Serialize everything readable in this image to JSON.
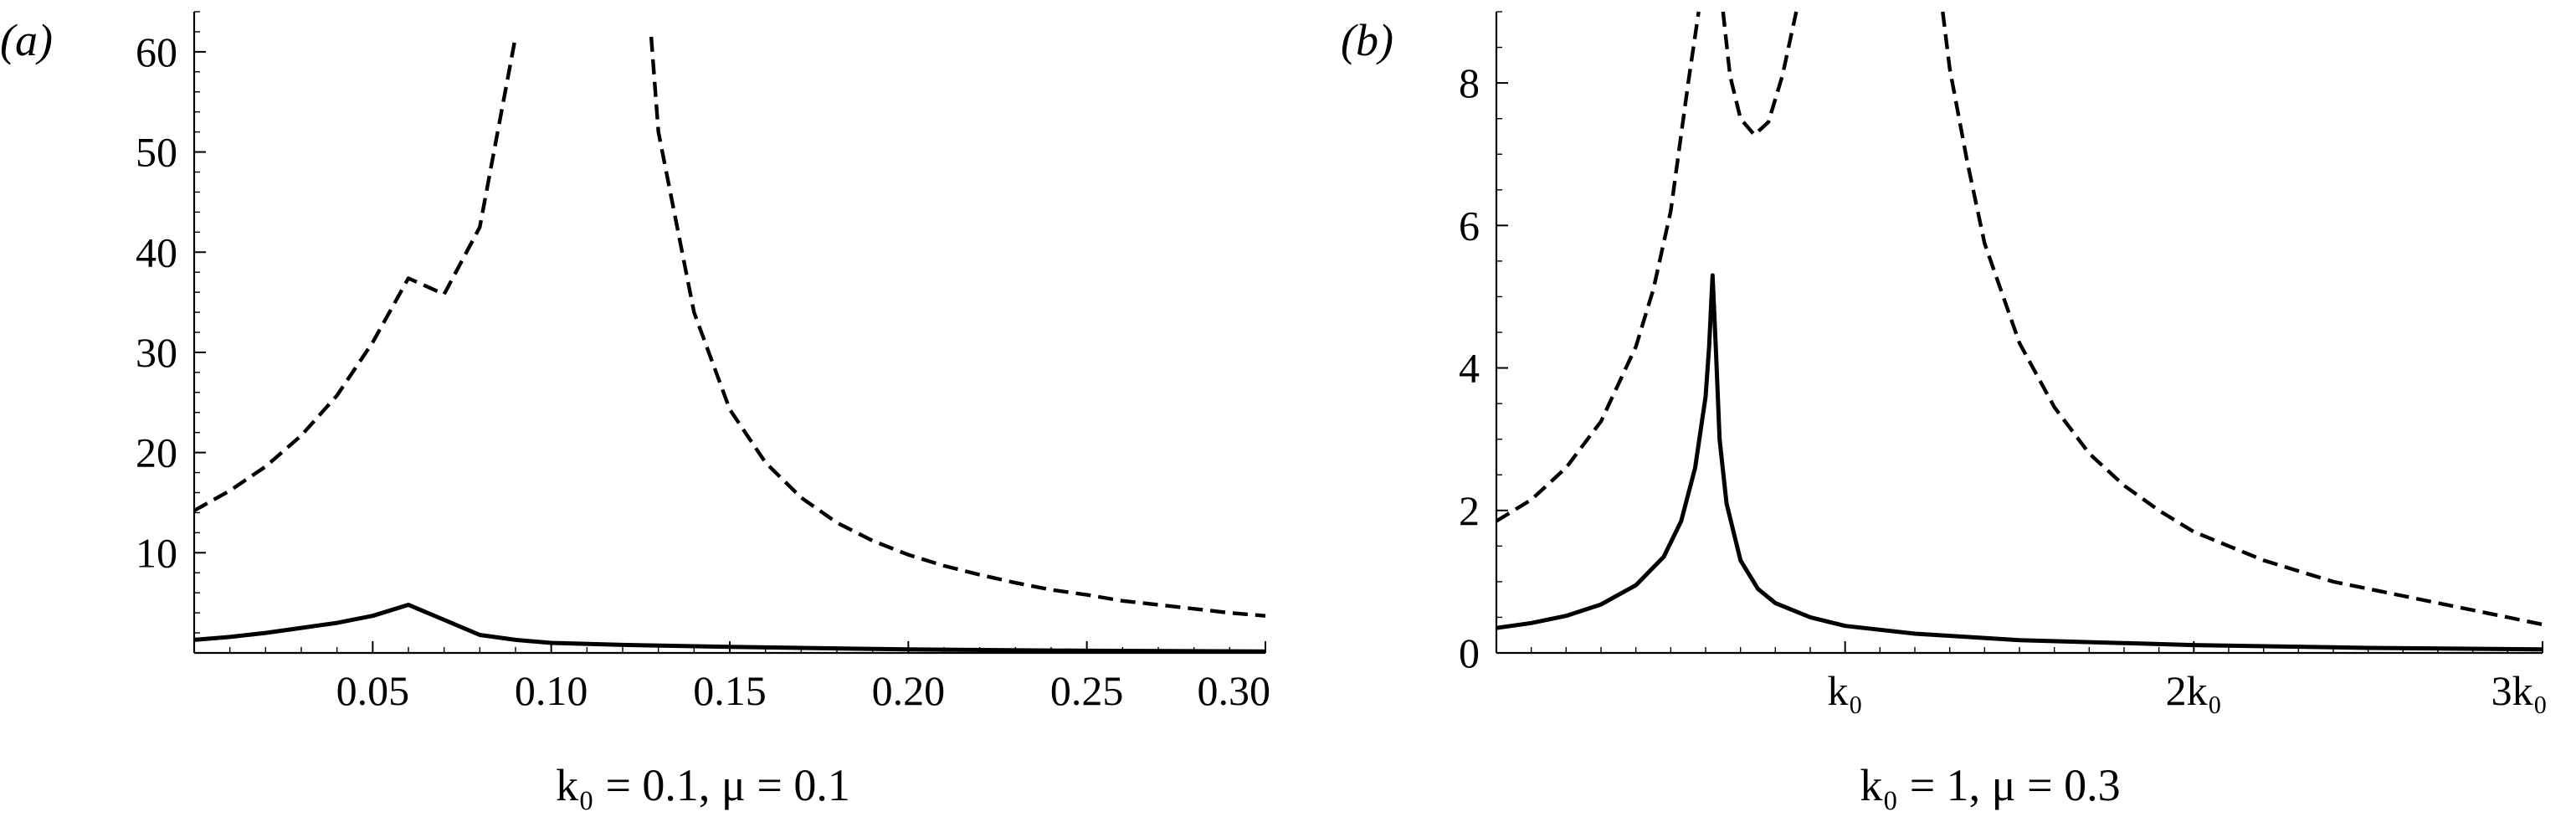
{
  "chart_data": [
    {
      "type": "line",
      "panel_label": "(a)",
      "caption": "k₀ = 0.1, μ = 0.1",
      "xlim": [
        0,
        0.3
      ],
      "ylim": [
        0,
        64
      ],
      "x_ticks": [
        {
          "value": 0.05,
          "label": "0.05"
        },
        {
          "value": 0.1,
          "label": "0.10"
        },
        {
          "value": 0.15,
          "label": "0.15"
        },
        {
          "value": 0.2,
          "label": "0.20"
        },
        {
          "value": 0.25,
          "label": "0.25"
        },
        {
          "value": 0.3,
          "label": "0.30"
        }
      ],
      "y_ticks": [
        {
          "value": 10,
          "label": "10"
        },
        {
          "value": 20,
          "label": "20"
        },
        {
          "value": 30,
          "label": "30"
        },
        {
          "value": 40,
          "label": "40"
        },
        {
          "value": 50,
          "label": "50"
        },
        {
          "value": 60,
          "label": "60"
        }
      ],
      "x_minor_step": 0.01,
      "y_minor_step": 2,
      "grid": false,
      "series": [
        {
          "style": "dashed",
          "segments": [
            [
              [
                0.0,
                14.2
              ],
              [
                0.01,
                16.2
              ],
              [
                0.02,
                18.6
              ],
              [
                0.03,
                21.7
              ],
              [
                0.04,
                25.7
              ],
              [
                0.05,
                31.0
              ],
              [
                0.06,
                37.4
              ],
              [
                0.07,
                35.8
              ],
              [
                0.08,
                42.5
              ],
              [
                0.09,
                61.5
              ]
            ],
            [
              [
                0.128,
                61.5
              ],
              [
                0.13,
                52.0
              ],
              [
                0.14,
                34.0
              ],
              [
                0.15,
                24.3
              ],
              [
                0.16,
                19.0
              ],
              [
                0.17,
                15.5
              ],
              [
                0.18,
                13.0
              ],
              [
                0.19,
                11.2
              ],
              [
                0.2,
                9.8
              ],
              [
                0.21,
                8.7
              ],
              [
                0.22,
                7.8
              ],
              [
                0.23,
                7.0
              ],
              [
                0.24,
                6.3
              ],
              [
                0.25,
                5.8
              ],
              [
                0.26,
                5.2
              ],
              [
                0.27,
                4.8
              ],
              [
                0.28,
                4.4
              ],
              [
                0.29,
                4.0
              ],
              [
                0.3,
                3.7
              ]
            ]
          ]
        },
        {
          "style": "solid",
          "segments": [
            [
              [
                0.0,
                1.3
              ],
              [
                0.01,
                1.6
              ],
              [
                0.02,
                2.0
              ],
              [
                0.03,
                2.5
              ],
              [
                0.04,
                3.0
              ],
              [
                0.05,
                3.7
              ],
              [
                0.06,
                4.8
              ],
              [
                0.07,
                3.3
              ],
              [
                0.08,
                1.8
              ],
              [
                0.09,
                1.3
              ],
              [
                0.1,
                1.0
              ],
              [
                0.12,
                0.8
              ],
              [
                0.15,
                0.6
              ],
              [
                0.2,
                0.35
              ],
              [
                0.25,
                0.22
              ],
              [
                0.3,
                0.15
              ]
            ]
          ]
        }
      ]
    },
    {
      "type": "line",
      "panel_label": "(b)",
      "caption": "k₀ = 1, μ = 0.3",
      "xlim": [
        0,
        3
      ],
      "ylim": [
        0,
        9
      ],
      "x_ticks": [
        {
          "value": 1,
          "label": "k₀"
        },
        {
          "value": 2,
          "label": "2k₀"
        },
        {
          "value": 3,
          "label": "3k₀"
        }
      ],
      "y_ticks": [
        {
          "value": 0,
          "label": "0"
        },
        {
          "value": 2,
          "label": "2"
        },
        {
          "value": 4,
          "label": "4"
        },
        {
          "value": 6,
          "label": "6"
        },
        {
          "value": 8,
          "label": "8"
        }
      ],
      "x_minor_step": 0.1,
      "y_minor_step": 0.5,
      "grid": false,
      "series": [
        {
          "style": "dashed",
          "segments": [
            [
              [
                0.0,
                1.85
              ],
              [
                0.1,
                2.15
              ],
              [
                0.2,
                2.6
              ],
              [
                0.3,
                3.25
              ],
              [
                0.4,
                4.3
              ],
              [
                0.45,
                5.1
              ],
              [
                0.5,
                6.2
              ],
              [
                0.55,
                8.0
              ],
              [
                0.58,
                9.0
              ]
            ],
            [
              [
                0.65,
                9.0
              ],
              [
                0.67,
                8.1
              ],
              [
                0.7,
                7.5
              ],
              [
                0.74,
                7.27
              ],
              [
                0.78,
                7.45
              ],
              [
                0.82,
                8.1
              ],
              [
                0.86,
                9.0
              ]
            ],
            [
              [
                1.28,
                9.0
              ],
              [
                1.3,
                8.2
              ],
              [
                1.35,
                6.9
              ],
              [
                1.4,
                5.75
              ],
              [
                1.5,
                4.35
              ],
              [
                1.6,
                3.45
              ],
              [
                1.7,
                2.8
              ],
              [
                1.8,
                2.35
              ],
              [
                1.9,
                2.0
              ],
              [
                2.0,
                1.7
              ],
              [
                2.1,
                1.5
              ],
              [
                2.2,
                1.3
              ],
              [
                2.3,
                1.15
              ],
              [
                2.4,
                1.0
              ],
              [
                2.5,
                0.9
              ],
              [
                2.6,
                0.8
              ],
              [
                2.7,
                0.7
              ],
              [
                2.8,
                0.6
              ],
              [
                2.9,
                0.5
              ],
              [
                3.0,
                0.4
              ]
            ]
          ]
        },
        {
          "style": "solid",
          "segments": [
            [
              [
                0.0,
                0.35
              ],
              [
                0.1,
                0.42
              ],
              [
                0.2,
                0.52
              ],
              [
                0.3,
                0.68
              ],
              [
                0.4,
                0.95
              ],
              [
                0.48,
                1.35
              ],
              [
                0.53,
                1.85
              ],
              [
                0.57,
                2.6
              ],
              [
                0.6,
                3.6
              ],
              [
                0.61,
                4.3
              ],
              [
                0.62,
                5.3
              ],
              [
                0.63,
                4.2
              ],
              [
                0.64,
                3.0
              ],
              [
                0.66,
                2.1
              ],
              [
                0.7,
                1.3
              ],
              [
                0.75,
                0.9
              ],
              [
                0.8,
                0.7
              ],
              [
                0.9,
                0.5
              ],
              [
                1.0,
                0.38
              ],
              [
                1.2,
                0.27
              ],
              [
                1.5,
                0.18
              ],
              [
                2.0,
                0.11
              ],
              [
                2.5,
                0.07
              ],
              [
                3.0,
                0.05
              ]
            ]
          ]
        }
      ]
    }
  ]
}
